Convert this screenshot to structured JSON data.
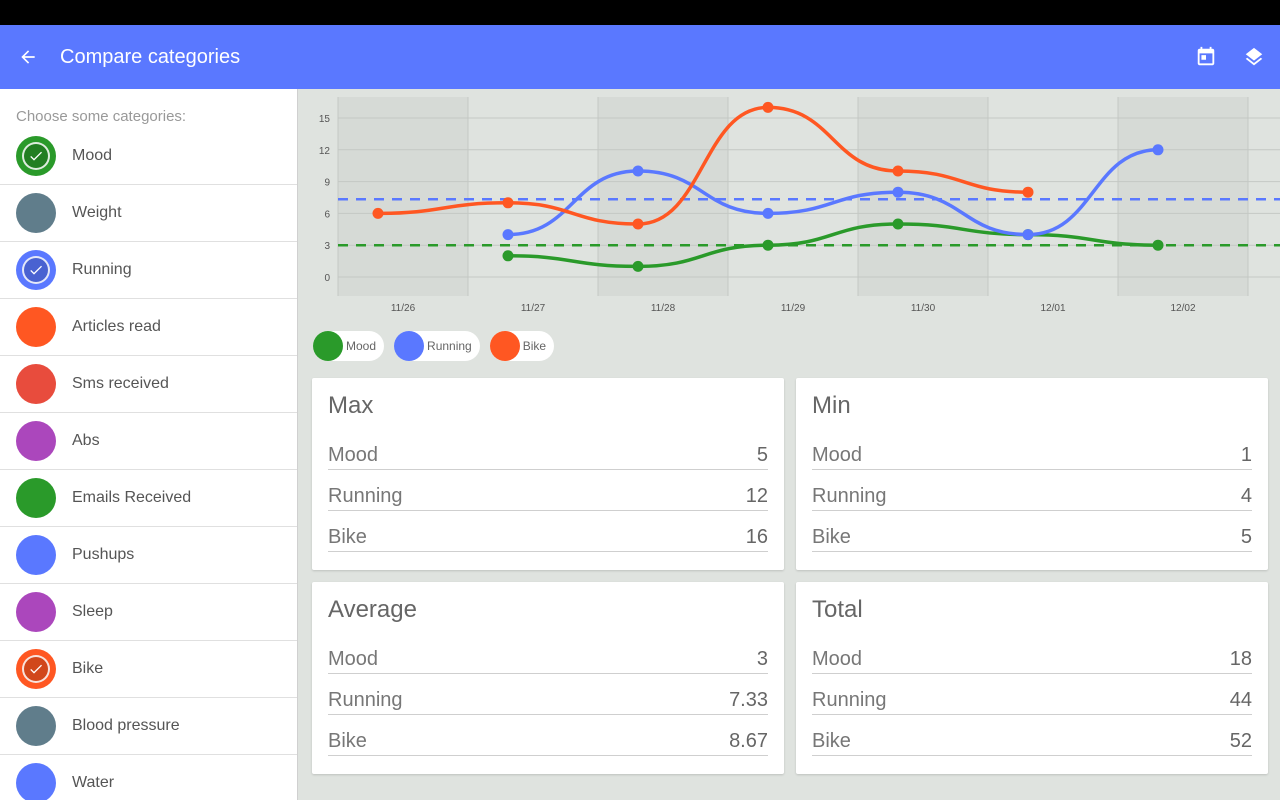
{
  "app_bar": {
    "title": "Compare categories",
    "back_icon": "arrow-back-icon",
    "calendar_icon": "calendar-icon",
    "layers_icon": "layers-icon",
    "color": "#5a78ff"
  },
  "sidebar": {
    "heading": "Choose some categories:",
    "items": [
      {
        "label": "Mood",
        "color": "#2a9a2a",
        "checked": true
      },
      {
        "label": "Weight",
        "color": "#607d8b",
        "checked": false
      },
      {
        "label": "Running",
        "color": "#5a78ff",
        "checked": true
      },
      {
        "label": "Articles read",
        "color": "#ff5722",
        "checked": false
      },
      {
        "label": "Sms received",
        "color": "#e84c3d",
        "checked": false
      },
      {
        "label": "Abs",
        "color": "#ab47bc",
        "checked": false
      },
      {
        "label": "Emails Received",
        "color": "#2a9a2a",
        "checked": false
      },
      {
        "label": "Pushups",
        "color": "#5a78ff",
        "checked": false
      },
      {
        "label": "Sleep",
        "color": "#ab47bc",
        "checked": false
      },
      {
        "label": "Bike",
        "color": "#ff5722",
        "checked": true
      },
      {
        "label": "Blood pressure",
        "color": "#607d8b",
        "checked": false
      },
      {
        "label": "Water",
        "color": "#5a78ff",
        "checked": false
      }
    ]
  },
  "chart_data": {
    "type": "line",
    "x_ticks": [
      "11/26",
      "11/27",
      "11/28",
      "11/29",
      "11/30",
      "12/01",
      "12/02"
    ],
    "y_ticks": [
      "0",
      "3",
      "6",
      "9",
      "12",
      "15"
    ],
    "ylim": [
      -2,
      17
    ],
    "grid": true,
    "series": [
      {
        "name": "Mood",
        "color": "#2a9a2a",
        "points": [
          [
            1,
            2
          ],
          [
            2,
            1
          ],
          [
            3,
            3
          ],
          [
            4,
            5
          ],
          [
            5,
            4
          ],
          [
            6,
            3
          ]
        ],
        "average": 3.0
      },
      {
        "name": "Running",
        "color": "#5a78ff",
        "points": [
          [
            1,
            4
          ],
          [
            2,
            10
          ],
          [
            3,
            6
          ],
          [
            4,
            8
          ],
          [
            5,
            4
          ],
          [
            6,
            12
          ]
        ],
        "average": 7.33
      },
      {
        "name": "Bike",
        "color": "#ff5722",
        "points": [
          [
            0,
            6
          ],
          [
            1,
            7
          ],
          [
            2,
            5
          ],
          [
            3,
            16
          ],
          [
            4,
            10
          ],
          [
            5,
            8
          ]
        ],
        "average": 8.67
      }
    ]
  },
  "legend": [
    {
      "label": "Mood",
      "color": "#2a9a2a"
    },
    {
      "label": "Running",
      "color": "#5a78ff"
    },
    {
      "label": "Bike",
      "color": "#ff5722"
    }
  ],
  "stats": {
    "max": {
      "title": "Max",
      "rows": [
        {
          "label": "Mood",
          "value": "5"
        },
        {
          "label": "Running",
          "value": "12"
        },
        {
          "label": "Bike",
          "value": "16"
        }
      ]
    },
    "min": {
      "title": "Min",
      "rows": [
        {
          "label": "Mood",
          "value": "1"
        },
        {
          "label": "Running",
          "value": "4"
        },
        {
          "label": "Bike",
          "value": "5"
        }
      ]
    },
    "average": {
      "title": "Average",
      "rows": [
        {
          "label": "Mood",
          "value": "3"
        },
        {
          "label": "Running",
          "value": "7.33"
        },
        {
          "label": "Bike",
          "value": "8.67"
        }
      ]
    },
    "total": {
      "title": "Total",
      "rows": [
        {
          "label": "Mood",
          "value": "18"
        },
        {
          "label": "Running",
          "value": "44"
        },
        {
          "label": "Bike",
          "value": "52"
        }
      ]
    }
  }
}
